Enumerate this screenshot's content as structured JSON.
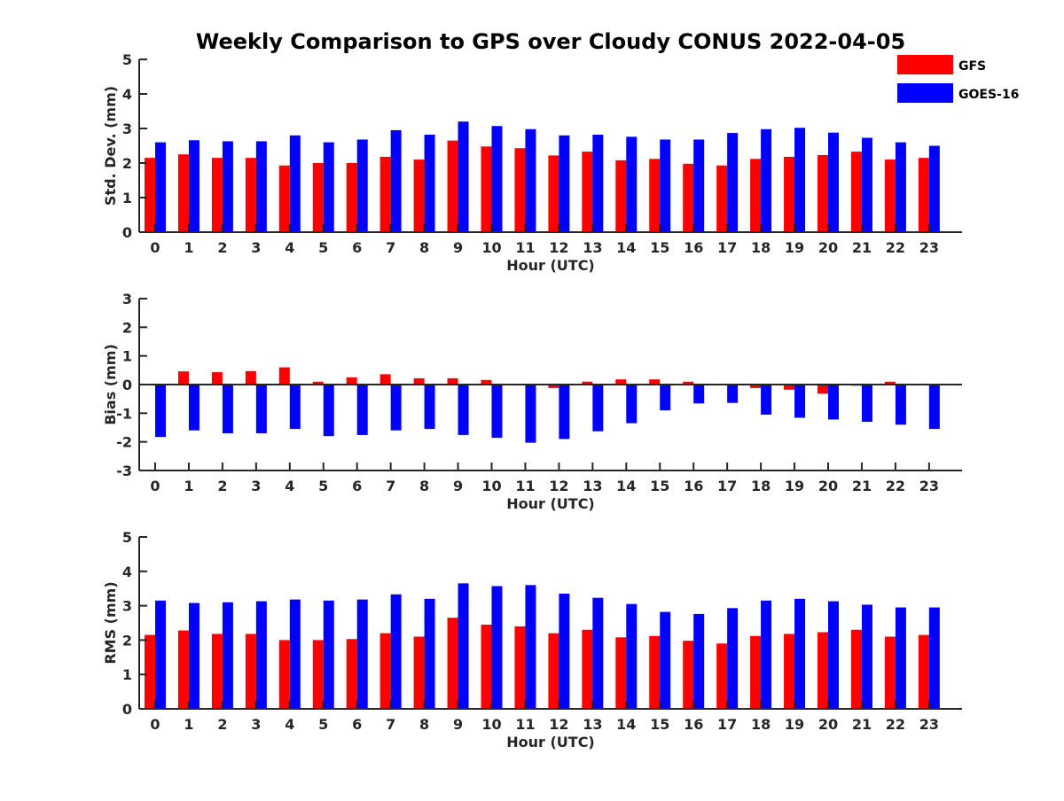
{
  "title": "Weekly Comparison to GPS over Cloudy CONUS 2022-04-05",
  "colors": {
    "GFS": "#ff0000",
    "GOES-16": "#0000ff",
    "axis": "#262626"
  },
  "legend": {
    "placement": "top-right",
    "entries": [
      "GFS",
      "GOES-16"
    ]
  },
  "chart_data": [
    {
      "type": "bar",
      "ylabel": "Std. Dev. (mm)",
      "xlabel": "Hour (UTC)",
      "ylim": [
        0,
        5
      ],
      "yticks": [
        0,
        1,
        2,
        3,
        4,
        5
      ],
      "categories": [
        "0",
        "1",
        "2",
        "3",
        "4",
        "5",
        "6",
        "7",
        "8",
        "9",
        "10",
        "11",
        "12",
        "13",
        "14",
        "15",
        "16",
        "17",
        "18",
        "19",
        "20",
        "21",
        "22",
        "23"
      ],
      "series": [
        {
          "name": "GFS",
          "values": [
            2.15,
            2.25,
            2.15,
            2.15,
            1.93,
            2.0,
            2.0,
            2.18,
            2.1,
            2.65,
            2.48,
            2.43,
            2.22,
            2.33,
            2.08,
            2.12,
            1.98,
            1.93,
            2.12,
            2.18,
            2.23,
            2.33,
            2.1,
            2.15
          ]
        },
        {
          "name": "GOES-16",
          "values": [
            2.6,
            2.66,
            2.63,
            2.63,
            2.8,
            2.6,
            2.68,
            2.95,
            2.82,
            3.2,
            3.07,
            2.98,
            2.8,
            2.82,
            2.76,
            2.68,
            2.68,
            2.87,
            2.98,
            3.02,
            2.88,
            2.73,
            2.6,
            2.5
          ]
        }
      ]
    },
    {
      "type": "bar",
      "ylabel": "Bias (mm)",
      "xlabel": "Hour (UTC)",
      "ylim": [
        -3,
        3
      ],
      "yticks": [
        -3,
        -2,
        -1,
        0,
        1,
        2,
        3
      ],
      "zero_line": true,
      "categories": [
        "0",
        "1",
        "2",
        "3",
        "4",
        "5",
        "6",
        "7",
        "8",
        "9",
        "10",
        "11",
        "12",
        "13",
        "14",
        "15",
        "16",
        "17",
        "18",
        "19",
        "20",
        "21",
        "22",
        "23"
      ],
      "series": [
        {
          "name": "GFS",
          "values": [
            0.0,
            0.46,
            0.43,
            0.47,
            0.6,
            0.1,
            0.25,
            0.36,
            0.22,
            0.22,
            0.16,
            0.0,
            -0.12,
            0.1,
            0.18,
            0.18,
            0.1,
            0.02,
            -0.12,
            -0.18,
            -0.32,
            -0.04,
            0.1,
            0.0
          ]
        },
        {
          "name": "GOES-16",
          "values": [
            -1.83,
            -1.6,
            -1.7,
            -1.7,
            -1.55,
            -1.8,
            -1.76,
            -1.6,
            -1.55,
            -1.76,
            -1.86,
            -2.03,
            -1.9,
            -1.63,
            -1.35,
            -0.9,
            -0.66,
            -0.64,
            -1.05,
            -1.16,
            -1.22,
            -1.3,
            -1.4,
            -1.55
          ]
        }
      ]
    },
    {
      "type": "bar",
      "ylabel": "RMS (mm)",
      "xlabel": "Hour (UTC)",
      "ylim": [
        0,
        5
      ],
      "yticks": [
        0,
        1,
        2,
        3,
        4,
        5
      ],
      "categories": [
        "0",
        "1",
        "2",
        "3",
        "4",
        "5",
        "6",
        "7",
        "8",
        "9",
        "10",
        "11",
        "12",
        "13",
        "14",
        "15",
        "16",
        "17",
        "18",
        "19",
        "20",
        "21",
        "22",
        "23"
      ],
      "series": [
        {
          "name": "GFS",
          "values": [
            2.15,
            2.28,
            2.18,
            2.18,
            2.0,
            2.0,
            2.03,
            2.2,
            2.1,
            2.65,
            2.45,
            2.4,
            2.2,
            2.3,
            2.08,
            2.12,
            1.98,
            1.9,
            2.12,
            2.18,
            2.23,
            2.3,
            2.1,
            2.15
          ]
        },
        {
          "name": "GOES-16",
          "values": [
            3.15,
            3.08,
            3.1,
            3.13,
            3.18,
            3.15,
            3.18,
            3.33,
            3.2,
            3.65,
            3.57,
            3.6,
            3.35,
            3.23,
            3.05,
            2.82,
            2.76,
            2.93,
            3.15,
            3.2,
            3.13,
            3.03,
            2.95,
            2.95
          ]
        }
      ]
    }
  ]
}
